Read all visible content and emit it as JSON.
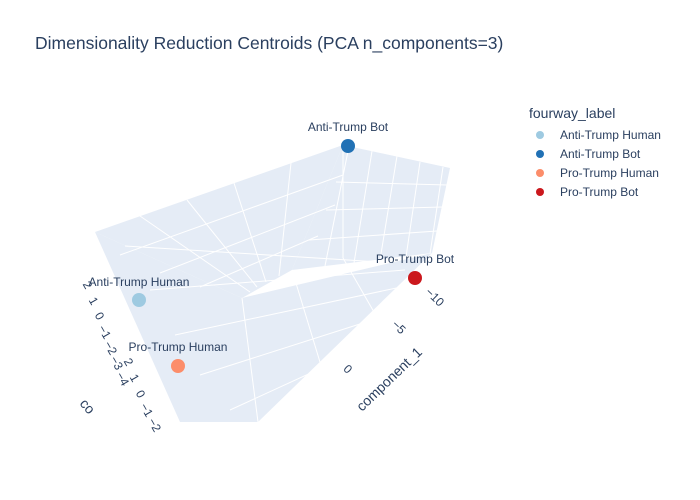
{
  "chart_data": {
    "type": "scatter",
    "subtype": "scatter3d",
    "title": "Dimensionality Reduction Centroids (PCA n_components=3)",
    "legend": {
      "title": "fourway_label",
      "placement": "top-right",
      "entries": [
        "Anti-Trump Human",
        "Anti-Trump Bot",
        "Pro-Trump Human",
        "Pro-Trump Bot"
      ]
    },
    "axes": {
      "x": {
        "title": "component_1",
        "ticks": [
          "−10",
          "−5",
          "0"
        ]
      },
      "y": {
        "title": "co",
        "ticks": [
          "2",
          "1",
          "0",
          "−1",
          "−2",
          "−3",
          "−4"
        ]
      },
      "z": {
        "title": "",
        "ticks": [
          "2",
          "1",
          "0",
          "−1",
          "−2"
        ]
      }
    },
    "grid": true,
    "series": [
      {
        "name": "Anti-Trump Human",
        "color": "#9ecae1",
        "label": "Anti-Trump Human"
      },
      {
        "name": "Anti-Trump Bot",
        "color": "#2171b5",
        "label": "Anti-Trump Bot"
      },
      {
        "name": "Pro-Trump Human",
        "color": "#fc8d6a",
        "label": "Pro-Trump Human"
      },
      {
        "name": "Pro-Trump Bot",
        "color": "#cb181d",
        "label": "Pro-Trump Bot"
      }
    ]
  }
}
